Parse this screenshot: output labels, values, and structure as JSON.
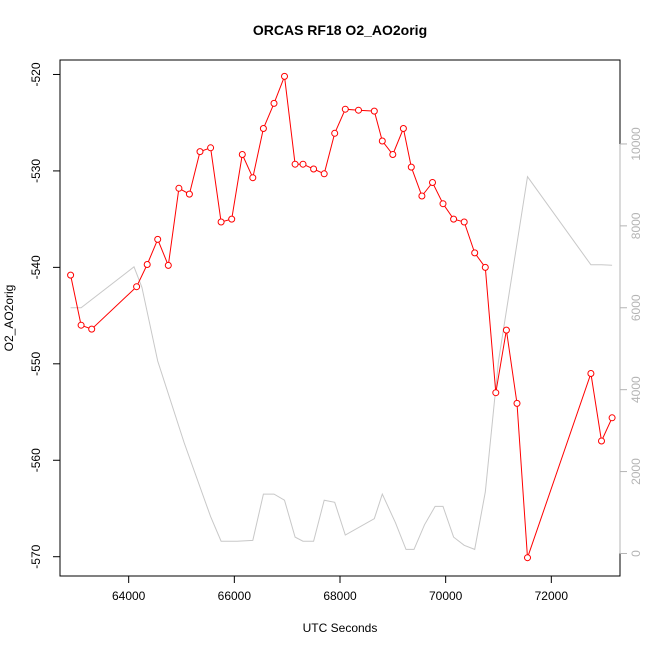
{
  "chart_data": {
    "type": "line",
    "title": "ORCAS RF18 O2_AO2orig",
    "xlabel": "UTC Seconds",
    "ylabel": "O2_AO2orig",
    "xlim": [
      62700,
      73300
    ],
    "ylim": [
      -572,
      -518.5
    ],
    "y2lim": [
      -550,
      12050
    ],
    "x_ticks": [
      64000,
      66000,
      68000,
      70000,
      72000
    ],
    "x_tick_labels": [
      "64000",
      "66000",
      "68000",
      "70000",
      "72000"
    ],
    "y_ticks": [
      -570,
      -560,
      -550,
      -540,
      -530,
      -520
    ],
    "y_tick_labels": [
      "-570",
      "-560",
      "-550",
      "-540",
      "-530",
      "-520"
    ],
    "y2_ticks": [
      0,
      2000,
      4000,
      6000,
      8000,
      10000
    ],
    "y2_tick_labels": [
      "0",
      "2000",
      "4000",
      "6000",
      "8000",
      "10000"
    ],
    "grid": false,
    "series": [
      {
        "role": "primary",
        "color": "#ff0000",
        "marker": "open-circle",
        "x": [
          62900,
          63100,
          63300,
          64150,
          64350,
          64550,
          64750,
          64950,
          65150,
          65350,
          65550,
          65750,
          65950,
          66150,
          66350,
          66550,
          66750,
          66950,
          67150,
          67300,
          67500,
          67700,
          67900,
          68100,
          68350,
          68650,
          68800,
          69000,
          69200,
          69350,
          69550,
          69750,
          69950,
          70150,
          70350,
          70550,
          70750,
          70950,
          71150,
          71350,
          71550,
          72750,
          72950,
          73150
        ],
        "y": [
          -540.8,
          -546.0,
          -546.4,
          -542.0,
          -539.7,
          -537.1,
          -539.8,
          -531.8,
          -532.4,
          -528.0,
          -527.6,
          -535.3,
          -535.0,
          -528.3,
          -530.7,
          -525.6,
          -523.0,
          -520.2,
          -529.3,
          -529.3,
          -529.8,
          -530.3,
          -526.1,
          -523.6,
          -523.7,
          -523.8,
          -526.9,
          -528.3,
          -525.6,
          -529.6,
          -532.6,
          -531.2,
          -533.4,
          -535.0,
          -535.3,
          -538.5,
          -540.0,
          -553.0,
          -546.5,
          -554.1,
          -570.1,
          -551.0,
          -558.0,
          -555.6
        ]
      },
      {
        "role": "secondary",
        "color": "#c8c8c8",
        "marker": "none",
        "x": [
          62900,
          63100,
          64100,
          64250,
          64550,
          65050,
          65550,
          65750,
          66050,
          66350,
          66550,
          66750,
          66950,
          67150,
          67300,
          67500,
          67700,
          67900,
          68100,
          68650,
          68800,
          69050,
          69250,
          69400,
          69600,
          69800,
          69950,
          70150,
          70350,
          70550,
          70750,
          71000,
          71550,
          72750,
          72950,
          73150
        ],
        "y": [
          6000,
          6000,
          7000,
          6500,
          4700,
          2700,
          900,
          300,
          300,
          320,
          1450,
          1450,
          1300,
          400,
          300,
          300,
          1300,
          1250,
          450,
          850,
          1450,
          750,
          100,
          100,
          700,
          1150,
          1150,
          400,
          200,
          100,
          1500,
          4700,
          9200,
          7050,
          7050,
          7040
        ]
      }
    ]
  }
}
